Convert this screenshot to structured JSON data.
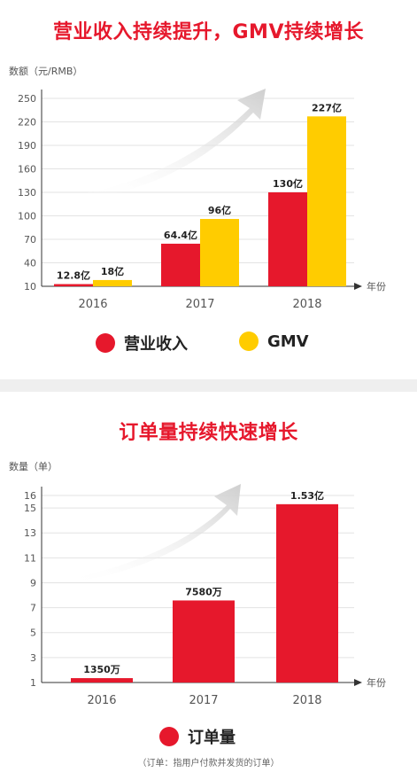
{
  "chart1": {
    "title": "营业收入持续提升，GMV持续增长",
    "ylabel": "数额（元/RMB）",
    "xlabel": "年份",
    "yticks": [
      10,
      40,
      70,
      100,
      130,
      160,
      190,
      220,
      250
    ],
    "legend": [
      {
        "name": "营业收入",
        "color": "#e6182c"
      },
      {
        "name": "GMV",
        "color": "#ffcc00"
      }
    ]
  },
  "chart2": {
    "title": "订单量持续快速增长",
    "ylabel": "数量（单）",
    "xlabel": "年份",
    "yticks": [
      1,
      3,
      5,
      7,
      9,
      11,
      13,
      15,
      16
    ],
    "legend": [
      {
        "name": "订单量",
        "color": "#e6182c"
      }
    ],
    "note": "（订单：指用户付款并发货的订单）"
  },
  "chart_data": [
    {
      "type": "bar",
      "title": "营业收入持续提升，GMV持续增长",
      "ylabel": "数额（元/RMB）",
      "xlabel": "年份",
      "categories": [
        "2016",
        "2017",
        "2018"
      ],
      "ylim": [
        10,
        250
      ],
      "grid": true,
      "legend_position": "bottom",
      "series": [
        {
          "name": "营业收入",
          "color": "#e6182c",
          "values": [
            12.8,
            64.4,
            130
          ],
          "labels": [
            "12.8亿",
            "64.4亿",
            "130亿"
          ]
        },
        {
          "name": "GMV",
          "color": "#ffcc00",
          "values": [
            18,
            96,
            227
          ],
          "labels": [
            "18亿",
            "96亿",
            "227亿"
          ]
        }
      ]
    },
    {
      "type": "bar",
      "title": "订单量持续快速增长",
      "ylabel": "数量（单）",
      "xlabel": "年份",
      "categories": [
        "2016",
        "2017",
        "2018"
      ],
      "ylim": [
        1,
        16
      ],
      "grid": true,
      "legend_position": "bottom",
      "series": [
        {
          "name": "订单量",
          "color": "#e6182c",
          "values": [
            1.35,
            7.58,
            15.3
          ],
          "labels": [
            "1350万",
            "7580万",
            "1.53亿"
          ]
        }
      ]
    }
  ]
}
